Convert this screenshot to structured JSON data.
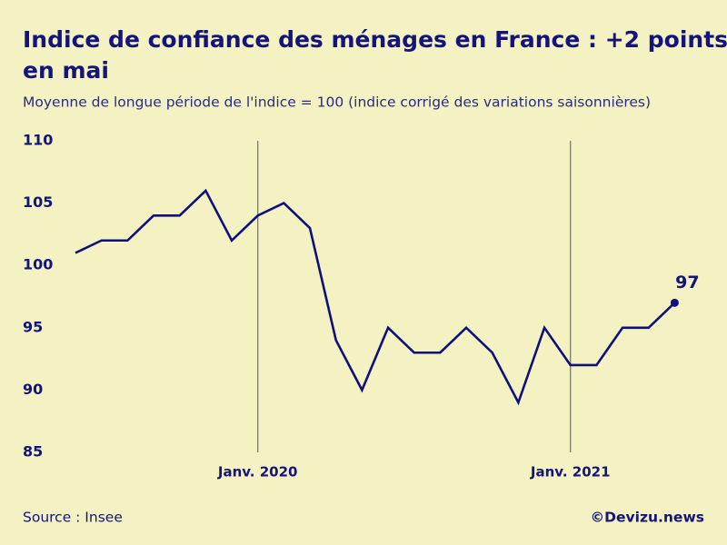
{
  "chart_data": {
    "type": "line",
    "title": "Indice de confiance des ménages en France : +2 points",
    "title_line2": "en mai",
    "subtitle": "Moyenne de longue période de l'indice = 100 (indice corrigé des variations saisonnières)",
    "source": "Source : Insee",
    "credit": "©Devizu.news",
    "categories": [
      null,
      null,
      null,
      null,
      null,
      null,
      null,
      "Janv. 2020",
      null,
      null,
      null,
      null,
      null,
      null,
      null,
      null,
      null,
      null,
      null,
      "Janv. 2021",
      null,
      null,
      null,
      null
    ],
    "values": [
      101,
      102,
      102,
      104,
      104,
      106,
      102,
      104,
      105,
      103,
      94,
      90,
      95,
      93,
      93,
      95,
      93,
      89,
      95,
      92,
      92,
      95,
      95,
      97
    ],
    "color": "#10107a",
    "ylim": [
      85,
      110
    ],
    "yticks": [
      85,
      90,
      95,
      100,
      105,
      110
    ],
    "grid": false
  }
}
